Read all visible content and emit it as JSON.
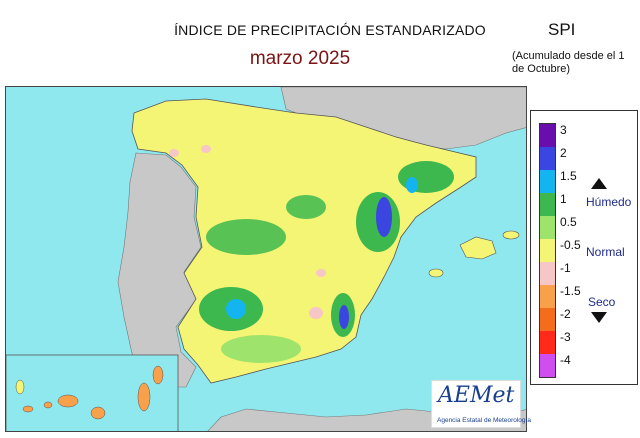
{
  "title": "ÍNDICE DE PRECIPITACIÓN ESTANDARIZADO",
  "subtitle": "marzo  2025",
  "index_name": "SPI",
  "accumulation_note": "(Acumulado desde el 1 de Octubre)",
  "legend": {
    "classes": [
      {
        "label": "3",
        "color": "#6a0dad"
      },
      {
        "label": "2",
        "color": "#3b45e0"
      },
      {
        "label": "1.5",
        "color": "#14b4f0"
      },
      {
        "label": "1",
        "color": "#3cb84f"
      },
      {
        "label": "0.5",
        "color": "#9ee36b"
      },
      {
        "label": "-0.5",
        "color": "#f4f475"
      },
      {
        "label": "-1",
        "color": "#f7c6c6"
      },
      {
        "label": "-1.5",
        "color": "#f9a04b"
      },
      {
        "label": "-2",
        "color": "#f36d1c"
      },
      {
        "label": "-3",
        "color": "#ff2a1a"
      },
      {
        "label": "-4",
        "color": "#d04ef0"
      }
    ],
    "categories": {
      "wet": "Húmedo",
      "normal": "Normal",
      "dry": "Seco"
    }
  },
  "map_colors": {
    "sea": "#8ee8ee",
    "land_outside": "#c8c8c8",
    "base": "#f4f475"
  },
  "logo": {
    "name": "AEMet",
    "caption": "Agencia Estatal de Meteorología"
  }
}
